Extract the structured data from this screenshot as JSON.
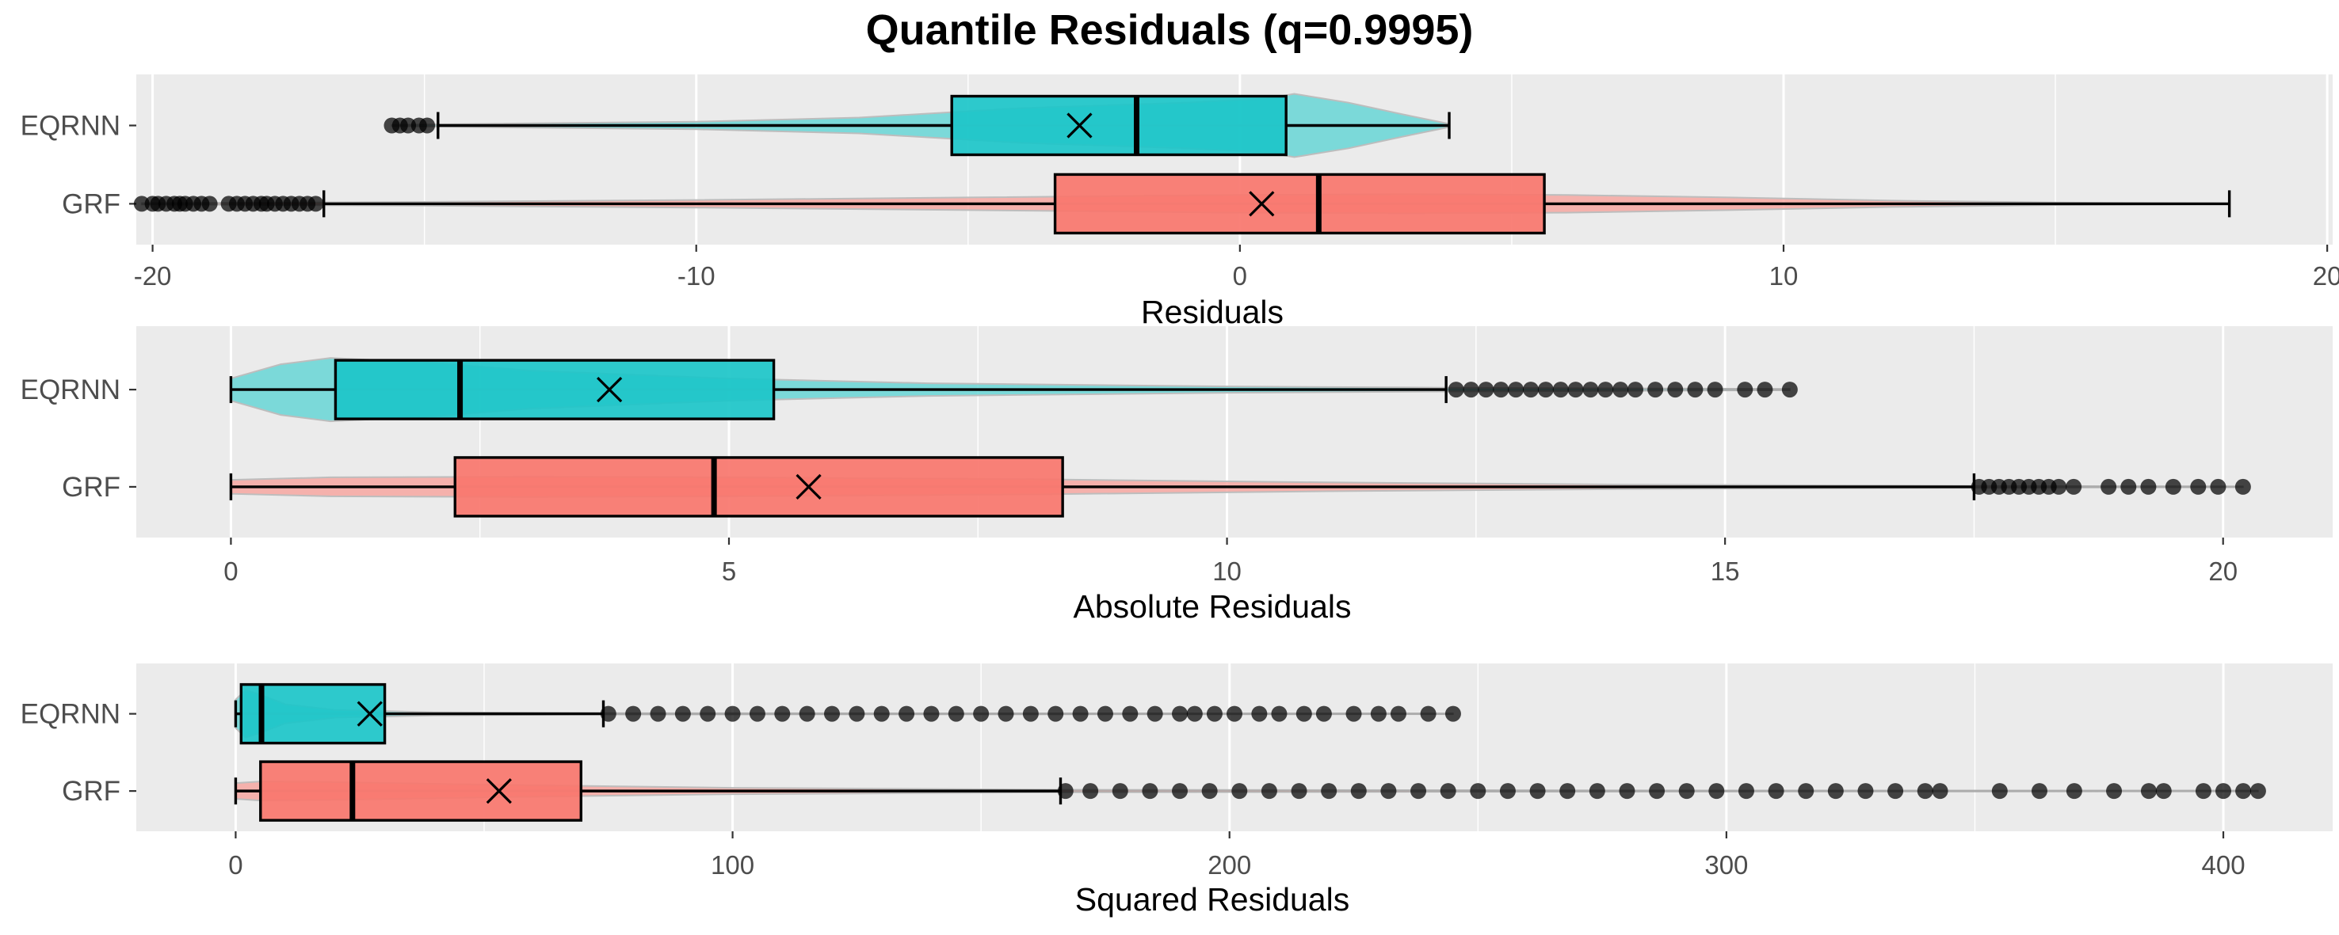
{
  "chart_data": {
    "title": "Quantile Residuals (q=0.9995)",
    "colors": {
      "EQRNN": "#1CC5C9",
      "GRF": "#F8766D",
      "EQRNN_violin": "#5FD4D5",
      "GRF_violin": "#F8A29C"
    },
    "panels": [
      {
        "type": "boxplot",
        "xlabel": "Residuals",
        "xlim": [
          -20.3,
          20.1
        ],
        "ticks": [
          -20,
          -10,
          0,
          10,
          20
        ],
        "tick_labels": [
          "-20",
          "-10",
          "0",
          "10",
          "20"
        ],
        "categories": [
          "EQRNN",
          "GRF"
        ],
        "series": [
          {
            "name": "EQRNN",
            "q1": -5.3,
            "median": -1.9,
            "q3": 0.85,
            "mean": -2.95,
            "whisker_low": -14.75,
            "whisker_high": 3.85,
            "outliers": [
              -15.6,
              -15.45,
              -15.3,
              -15.1,
              -14.95
            ],
            "violin_width": [
              [
                -15.6,
                0.02
              ],
              [
                -14,
                0.05
              ],
              [
                -10,
                0.12
              ],
              [
                -7,
                0.25
              ],
              [
                -4,
                0.55
              ],
              [
                -1,
                0.72
              ],
              [
                0.5,
                0.85
              ],
              [
                1.0,
                1.0
              ],
              [
                2.0,
                0.72
              ],
              [
                3.0,
                0.35
              ],
              [
                3.85,
                0.05
              ]
            ]
          },
          {
            "name": "GRF",
            "q1": -3.4,
            "median": 1.45,
            "q3": 5.6,
            "mean": 0.4,
            "whisker_low": -16.85,
            "whisker_high": 18.2,
            "outliers": [
              -20.2,
              -20.0,
              -19.9,
              -19.75,
              -19.6,
              -19.5,
              -19.4,
              -19.25,
              -19.1,
              -18.95,
              -18.6,
              -18.45,
              -18.3,
              -18.15,
              -18.0,
              -17.9,
              -17.75,
              -17.6,
              -17.45,
              -17.3,
              -17.15,
              -17.0
            ],
            "violin_width": [
              [
                -20.2,
                0.02
              ],
              [
                -15,
                0.06
              ],
              [
                -10,
                0.12
              ],
              [
                -5,
                0.2
              ],
              [
                0,
                0.28
              ],
              [
                3,
                0.3
              ],
              [
                6,
                0.28
              ],
              [
                9,
                0.2
              ],
              [
                12,
                0.1
              ],
              [
                15,
                0.04
              ],
              [
                18.2,
                0.01
              ]
            ]
          }
        ]
      },
      {
        "type": "boxplot",
        "xlabel": "Absolute Residuals",
        "xlim": [
          -0.95,
          21.1
        ],
        "ticks": [
          0,
          5,
          10,
          15,
          20
        ],
        "tick_labels": [
          "0",
          "5",
          "10",
          "15",
          "20"
        ],
        "categories": [
          "EQRNN",
          "GRF"
        ],
        "series": [
          {
            "name": "EQRNN",
            "q1": 1.05,
            "median": 2.3,
            "q3": 5.45,
            "mean": 3.8,
            "whisker_low": 0.0,
            "whisker_high": 12.2,
            "outliers": [
              12.3,
              12.45,
              12.6,
              12.75,
              12.9,
              13.05,
              13.2,
              13.35,
              13.5,
              13.65,
              13.8,
              13.95,
              14.1,
              14.3,
              14.5,
              14.7,
              14.9,
              15.2,
              15.4,
              15.65
            ],
            "violin_width": [
              [
                0,
                0.35
              ],
              [
                0.5,
                0.8
              ],
              [
                1.0,
                1.0
              ],
              [
                2.0,
                0.85
              ],
              [
                3.0,
                0.6
              ],
              [
                5.0,
                0.35
              ],
              [
                7.0,
                0.2
              ],
              [
                10.0,
                0.1
              ],
              [
                12.2,
                0.06
              ],
              [
                15.65,
                0.02
              ]
            ]
          },
          {
            "name": "GRF",
            "q1": 2.25,
            "median": 4.85,
            "q3": 8.35,
            "mean": 5.8,
            "whisker_low": 0.0,
            "whisker_high": 17.5,
            "outliers": [
              17.55,
              17.65,
              17.75,
              17.85,
              17.95,
              18.05,
              18.15,
              18.25,
              18.35,
              18.5,
              18.85,
              19.05,
              19.25,
              19.5,
              19.75,
              19.95,
              20.2
            ],
            "violin_width": [
              [
                0,
                0.22
              ],
              [
                1,
                0.3
              ],
              [
                3,
                0.32
              ],
              [
                5,
                0.3
              ],
              [
                8,
                0.24
              ],
              [
                11,
                0.14
              ],
              [
                14,
                0.07
              ],
              [
                17.5,
                0.03
              ],
              [
                20.2,
                0.01
              ]
            ]
          }
        ]
      },
      {
        "type": "boxplot",
        "xlabel": "Squared Residuals",
        "xlim": [
          -20,
          422
        ],
        "ticks": [
          0,
          100,
          200,
          300,
          400
        ],
        "tick_labels": [
          "0",
          "100",
          "200",
          "300",
          "400"
        ],
        "categories": [
          "EQRNN",
          "GRF"
        ],
        "series": [
          {
            "name": "EQRNN",
            "q1": 1.1,
            "median": 5.2,
            "q3": 30.0,
            "mean": 27.0,
            "whisker_low": 0.0,
            "whisker_high": 74.0,
            "outliers": [
              75,
              80,
              85,
              90,
              95,
              100,
              105,
              110,
              115,
              120,
              125,
              130,
              135,
              140,
              145,
              150,
              155,
              160,
              165,
              170,
              175,
              180,
              185,
              190,
              193,
              197,
              201,
              206,
              210,
              215,
              219,
              225,
              230,
              234,
              240,
              245
            ],
            "violin_width": [
              [
                0,
                0.45
              ],
              [
                2,
                0.75
              ],
              [
                5,
                0.6
              ],
              [
                10,
                0.3
              ],
              [
                20,
                0.12
              ],
              [
                40,
                0.05
              ],
              [
                74,
                0.02
              ],
              [
                245,
                0.01
              ]
            ]
          },
          {
            "name": "GRF",
            "q1": 5.0,
            "median": 23.5,
            "q3": 69.5,
            "mean": 53.0,
            "whisker_low": 0.0,
            "whisker_high": 166.0,
            "outliers": [
              167,
              172,
              178,
              184,
              190,
              196,
              202,
              208,
              214,
              220,
              226,
              232,
              238,
              244,
              250,
              256,
              262,
              268,
              274,
              280,
              286,
              292,
              298,
              304,
              310,
              316,
              322,
              328,
              334,
              340,
              343,
              355,
              363,
              370,
              378,
              385,
              388,
              396,
              400,
              404,
              407
            ],
            "violin_width": [
              [
                0,
                0.25
              ],
              [
                5,
                0.3
              ],
              [
                20,
                0.28
              ],
              [
                50,
                0.2
              ],
              [
                100,
                0.1
              ],
              [
                166,
                0.04
              ],
              [
                300,
                0.015
              ],
              [
                407,
                0.01
              ]
            ]
          }
        ]
      }
    ]
  }
}
